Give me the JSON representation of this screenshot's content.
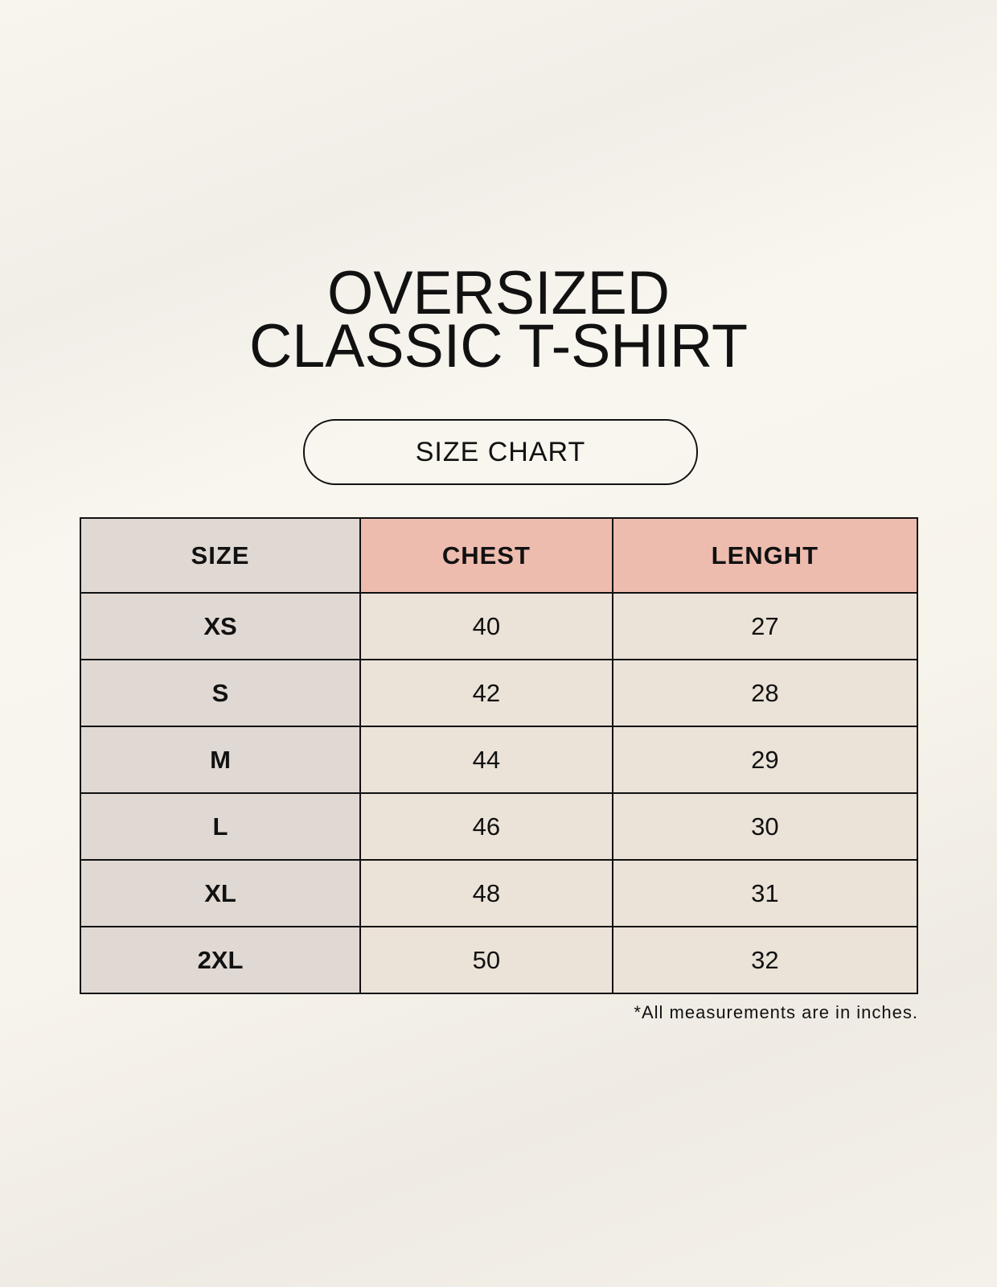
{
  "title_lines": [
    "OVERSIZED",
    "CLASSIC T-SHIRT"
  ],
  "badge": "SIZE CHART",
  "table": {
    "headers": [
      "SIZE",
      "CHEST",
      "LENGHT"
    ],
    "rows": [
      [
        "XS",
        "40",
        "27"
      ],
      [
        "S",
        "42",
        "28"
      ],
      [
        "M",
        "44",
        "29"
      ],
      [
        "L",
        "46",
        "30"
      ],
      [
        "XL",
        "48",
        "31"
      ],
      [
        "2XL",
        "50",
        "32"
      ]
    ]
  },
  "footnote": "*All measurements are in inches.",
  "colors": {
    "size_column": "#e0d8d2",
    "header_accent": "#edbcaf",
    "value_cells": "#ebe2d8"
  }
}
